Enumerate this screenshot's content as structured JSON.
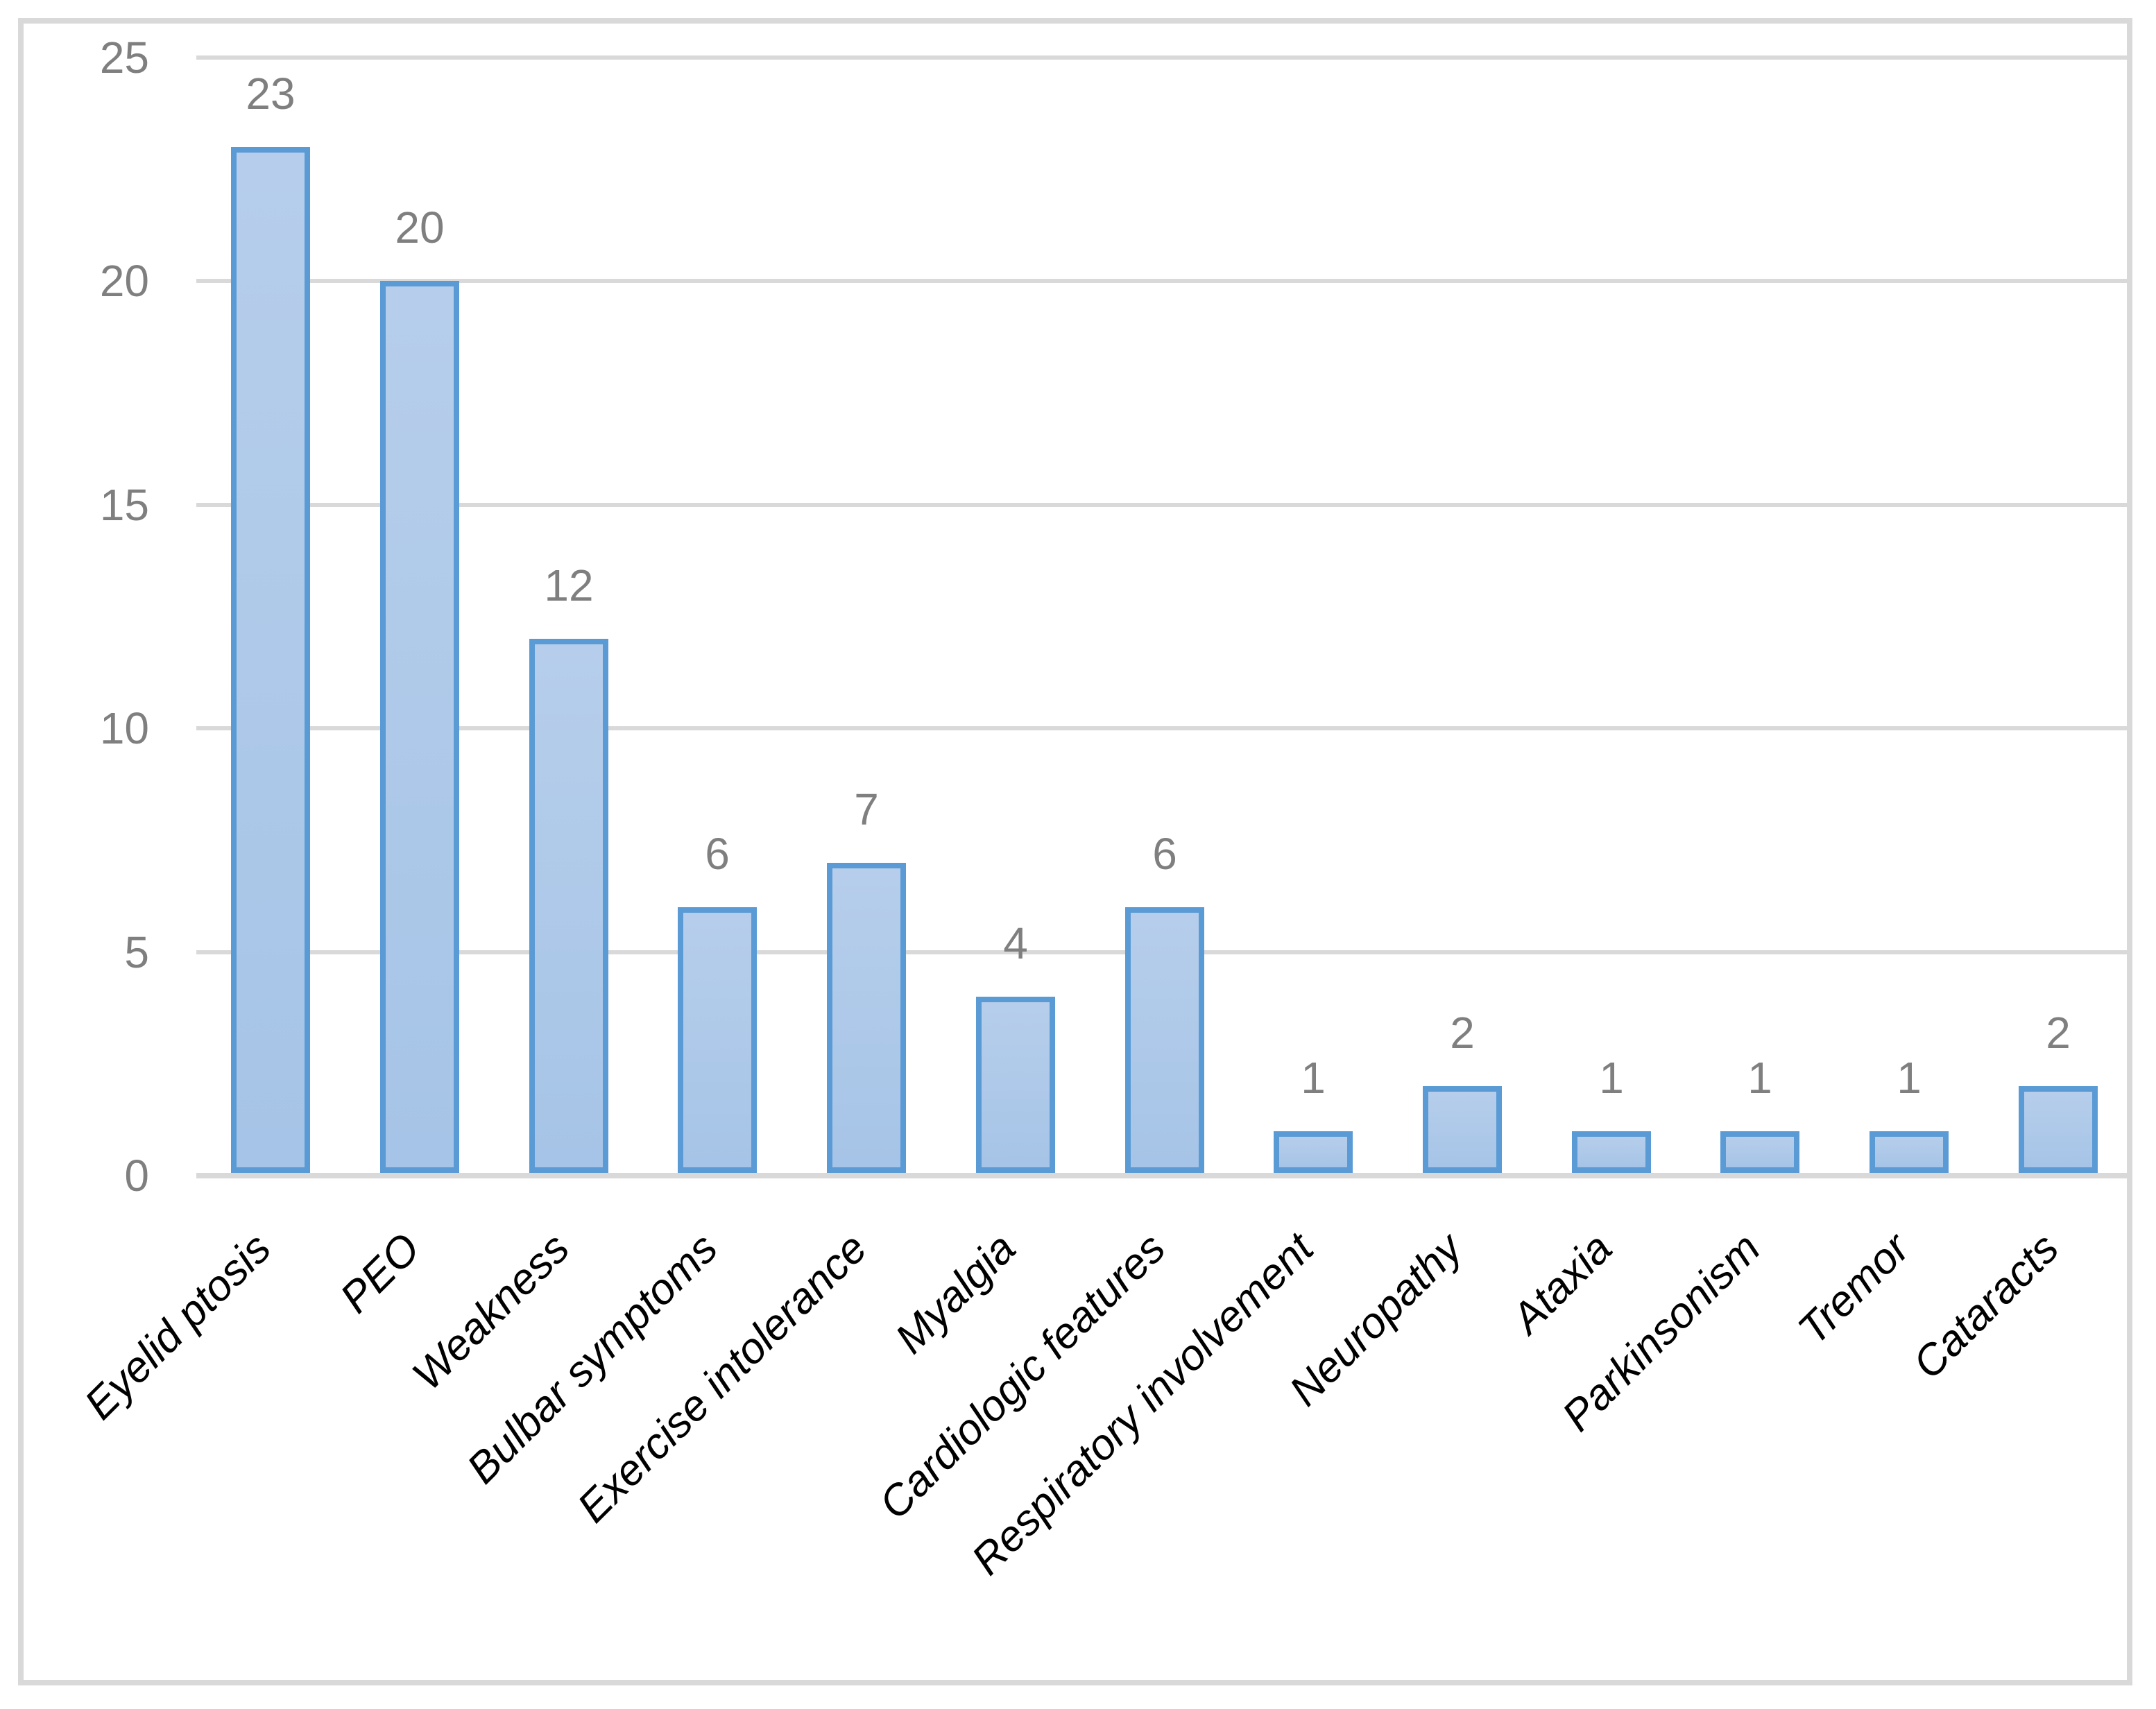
{
  "chart_data": {
    "type": "bar",
    "categories": [
      "Eyelid ptosis",
      "PEO",
      "Weakness",
      "Bulbar symptoms",
      "Exercise intolerance",
      "Myalgia",
      "Cardiologic features",
      "Respiratory involvement",
      "Neuropathy",
      "Ataxia",
      "Parkinsonism",
      "Tremor",
      "Cataracts"
    ],
    "values": [
      23,
      20,
      12,
      6,
      7,
      4,
      6,
      1,
      2,
      1,
      1,
      1,
      2
    ],
    "value_labels": [
      "23",
      "20",
      "12",
      "6",
      "7",
      "4",
      "6",
      "1",
      "2",
      "1",
      "1",
      "1",
      "2"
    ],
    "title": "",
    "xlabel": "",
    "ylabel": "",
    "ylim": [
      0,
      25
    ],
    "yticks": [
      0,
      5,
      10,
      15,
      20,
      25
    ],
    "ytick_labels": [
      "0",
      "5",
      "10",
      "15",
      "20",
      "25"
    ],
    "grid": true,
    "legend": false,
    "value_labels_shown": true,
    "styles": {
      "bar_fill_top": "#B6CEEB",
      "bar_fill_bottom": "#A6C4E7",
      "bar_border": "#5B9BD5",
      "gridline": "#D9D9D9",
      "axis_line": "#D9D9D9",
      "frame_border": "#D9D9D9",
      "tick_label_color": "#7F7F7F",
      "value_label_color": "#7F7F7F",
      "category_label_color": "#000000",
      "background": "#FFFFFF"
    }
  }
}
